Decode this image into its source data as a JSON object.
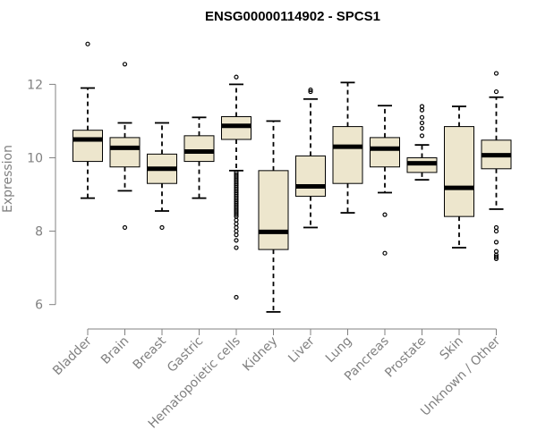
{
  "chart_data": {
    "type": "boxplot",
    "title": "ENSG00000114902 - SPCS1",
    "xlabel": "",
    "ylabel": "Expression",
    "ylim": [
      5.7,
      13.3
    ],
    "yticks": [
      6,
      8,
      10,
      12
    ],
    "categories": [
      "Bladder",
      "Brain",
      "Breast",
      "Gastric",
      "Hematopoietic cells",
      "Kidney",
      "Liver",
      "Lung",
      "Pancreas",
      "Prostate",
      "Skin",
      "Unknown / Other"
    ],
    "boxes": [
      {
        "name": "Bladder",
        "whislo": 8.9,
        "q1": 9.9,
        "med": 10.5,
        "q3": 10.75,
        "whishi": 11.9,
        "fliers": [
          13.1
        ]
      },
      {
        "name": "Brain",
        "whislo": 9.1,
        "q1": 9.75,
        "med": 10.27,
        "q3": 10.55,
        "whishi": 10.95,
        "fliers": [
          12.55,
          8.1
        ]
      },
      {
        "name": "Breast",
        "whislo": 8.55,
        "q1": 9.3,
        "med": 9.7,
        "q3": 10.1,
        "whishi": 10.95,
        "fliers": [
          8.1
        ]
      },
      {
        "name": "Gastric",
        "whislo": 8.9,
        "q1": 9.9,
        "med": 10.17,
        "q3": 10.6,
        "whishi": 11.1,
        "fliers": []
      },
      {
        "name": "Hematopoietic cells",
        "whislo": 9.65,
        "q1": 10.5,
        "med": 10.87,
        "q3": 11.12,
        "whishi": 12.0,
        "fliers": [
          12.2,
          9.6,
          9.55,
          9.5,
          9.45,
          9.4,
          9.35,
          9.3,
          9.25,
          9.2,
          9.15,
          9.1,
          9.05,
          9.0,
          8.95,
          8.9,
          8.85,
          8.8,
          8.75,
          8.7,
          8.65,
          8.6,
          8.55,
          8.5,
          8.45,
          8.4,
          8.3,
          8.2,
          8.1,
          8.0,
          7.9,
          7.75,
          7.55,
          6.2
        ]
      },
      {
        "name": "Kidney",
        "whislo": 5.8,
        "q1": 7.5,
        "med": 7.98,
        "q3": 9.65,
        "whishi": 11.0,
        "fliers": []
      },
      {
        "name": "Liver",
        "whislo": 8.1,
        "q1": 8.95,
        "med": 9.22,
        "q3": 10.05,
        "whishi": 11.6,
        "fliers": [
          11.8,
          11.85
        ]
      },
      {
        "name": "Lung",
        "whislo": 8.5,
        "q1": 9.3,
        "med": 10.3,
        "q3": 10.85,
        "whishi": 12.05,
        "fliers": []
      },
      {
        "name": "Pancreas",
        "whislo": 9.05,
        "q1": 9.75,
        "med": 10.25,
        "q3": 10.55,
        "whishi": 11.42,
        "fliers": [
          8.45,
          7.4
        ]
      },
      {
        "name": "Prostate",
        "whislo": 9.4,
        "q1": 9.6,
        "med": 9.85,
        "q3": 10.0,
        "whishi": 10.35,
        "fliers": [
          11.4,
          11.3,
          11.1,
          10.95,
          10.8,
          10.6
        ]
      },
      {
        "name": "Skin",
        "whislo": 7.55,
        "q1": 8.4,
        "med": 9.18,
        "q3": 10.85,
        "whishi": 11.4,
        "fliers": []
      },
      {
        "name": "Unknown / Other",
        "whislo": 8.6,
        "q1": 9.7,
        "med": 10.07,
        "q3": 10.48,
        "whishi": 11.65,
        "fliers": [
          12.3,
          11.8,
          8.1,
          8.0,
          7.7,
          7.45,
          7.35,
          7.3,
          7.25
        ]
      }
    ],
    "colors": {
      "box_fill": "#ede6cd",
      "stroke": "#000000",
      "axis": "#808080"
    },
    "grid": false,
    "legend": "none"
  }
}
